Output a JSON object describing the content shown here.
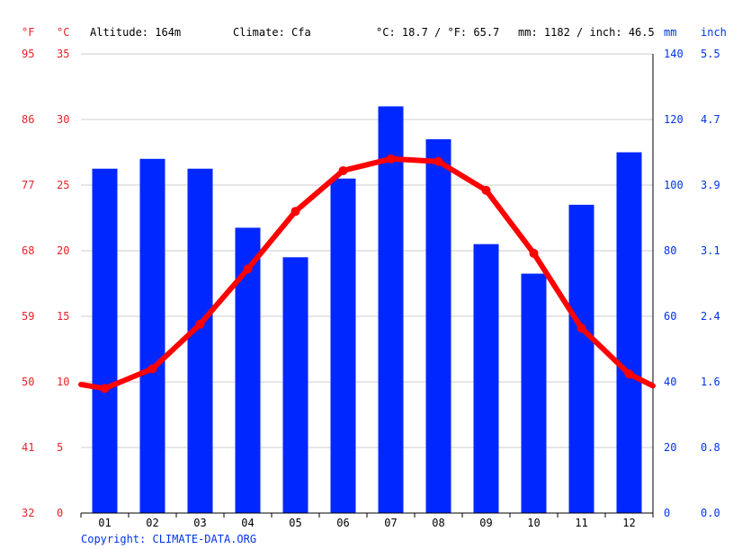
{
  "header": {
    "unit_f": "°F",
    "unit_c": "°C",
    "altitude": "Altitude: 164m",
    "climate": "Climate: Cfa",
    "temp_avg": "°C: 18.7 / °F: 65.7",
    "precip_total": "mm: 1182 / inch: 46.5",
    "unit_mm": "mm",
    "unit_inch": "inch"
  },
  "copyright": "Copyright: CLIMATE-DATA.ORG",
  "colors": {
    "precip": "#0027ff",
    "temp": "#ff0000",
    "axis_red": "#e8222a",
    "axis_blue": "#0033ee",
    "grid": "#cccccc"
  },
  "chart_data": {
    "type": "bar",
    "categories": [
      "01",
      "02",
      "03",
      "04",
      "05",
      "06",
      "07",
      "08",
      "09",
      "10",
      "11",
      "12"
    ],
    "series": [
      {
        "type": "bar",
        "axis": "mm",
        "values": [
          105,
          108,
          105,
          87,
          78,
          102,
          124,
          114,
          82,
          73,
          94,
          110
        ]
      },
      {
        "type": "line",
        "axis": "°C",
        "values": [
          9.5,
          11.0,
          14.4,
          18.6,
          23.0,
          26.1,
          27.0,
          26.8,
          24.6,
          19.8,
          14.1,
          10.6
        ]
      }
    ],
    "temp_line_extension": {
      "start": 9.8,
      "end": 9.7
    },
    "left_axis_f": {
      "ticks": [
        "95",
        "86",
        "77",
        "68",
        "59",
        "50",
        "41",
        "32"
      ]
    },
    "left_axis_c": {
      "ticks": [
        "35",
        "30",
        "25",
        "20",
        "15",
        "10",
        "5",
        "0"
      ],
      "ylim": [
        0,
        35
      ]
    },
    "right_axis_mm": {
      "ticks": [
        "140",
        "120",
        "100",
        "80",
        "60",
        "40",
        "20",
        "0"
      ],
      "ylim": [
        0,
        140
      ]
    },
    "right_axis_inch": {
      "ticks": [
        "5.5",
        "4.7",
        "3.9",
        "3.1",
        "2.4",
        "1.6",
        "0.8",
        "0.0"
      ]
    },
    "grid": true
  }
}
